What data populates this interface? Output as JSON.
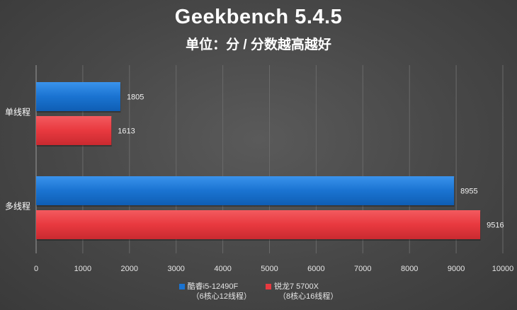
{
  "chart_data": {
    "type": "bar",
    "orientation": "horizontal",
    "title": "Geekbench 5.4.5",
    "subtitle": "单位：分 / 分数越高越好",
    "categories": [
      "单线程",
      "多线程"
    ],
    "series": [
      {
        "name": "酷睿i5-12490F",
        "name_line2": "（6核心12线程）",
        "color": "#1a73d1",
        "values": [
          1805,
          8955
        ]
      },
      {
        "name": "锐龙7 5700X",
        "name_line2": "（8核心16线程）",
        "color": "#e8393f",
        "values": [
          1613,
          9516
        ]
      }
    ],
    "xlim": [
      0,
      10000
    ],
    "xticks": [
      0,
      1000,
      2000,
      3000,
      4000,
      5000,
      6000,
      7000,
      8000,
      9000,
      10000
    ],
    "grid": true,
    "legend_position": "bottom"
  }
}
